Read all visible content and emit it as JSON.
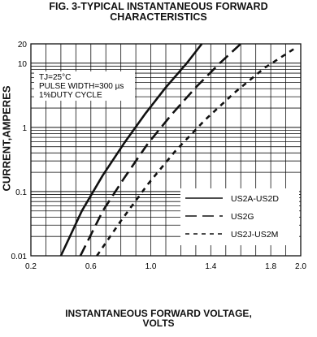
{
  "chart_data": {
    "type": "line",
    "title_line1": "FIG. 3-TYPICAL INSTANTANEOUS FORWARD",
    "title_line2": "CHARACTERISTICS",
    "xlabel_line1": "INSTANTANEOUS FORWARD VOLTAGE,",
    "xlabel_line2": "VOLTS",
    "ylabel": "CURRENT,AMPERES",
    "xlim": [
      0.2,
      2.0
    ],
    "ylim": [
      0.01,
      20
    ],
    "yscale": "log",
    "grid": true,
    "x_ticks": [
      "0.2",
      "0.6",
      "1.0",
      "1.4",
      "1.8",
      "2.0"
    ],
    "x_tick_values": [
      0.2,
      0.6,
      1.0,
      1.4,
      1.8,
      2.0
    ],
    "y_ticks": [
      "0.01",
      "0.1",
      "1",
      "10",
      "20"
    ],
    "y_tick_values": [
      0.01,
      0.1,
      1,
      10,
      20
    ],
    "annotation": [
      "TJ=25°C",
      "PULSE WIDTH=300 µs",
      "1%DUTY CYCLE"
    ],
    "legend_position": "bottom-right",
    "series": [
      {
        "name": "US2A-US2D",
        "style": "solid",
        "x": [
          0.4,
          0.54,
          0.68,
          0.82,
          0.96,
          1.1,
          1.24,
          1.34
        ],
        "y": [
          0.01,
          0.05,
          0.18,
          0.56,
          1.6,
          4.2,
          10,
          20
        ]
      },
      {
        "name": "US2G",
        "style": "dashed",
        "x": [
          0.53,
          0.68,
          0.82,
          0.98,
          1.14,
          1.3,
          1.46,
          1.6
        ],
        "y": [
          0.01,
          0.05,
          0.16,
          0.56,
          1.6,
          4.2,
          10,
          20
        ]
      },
      {
        "name": "US2J-US2M",
        "style": "dotted",
        "x": [
          0.64,
          0.8,
          0.98,
          1.16,
          1.36,
          1.56,
          1.76,
          1.96
        ],
        "y": [
          0.01,
          0.035,
          0.13,
          0.42,
          1.3,
          3.5,
          8.5,
          17
        ]
      }
    ]
  }
}
